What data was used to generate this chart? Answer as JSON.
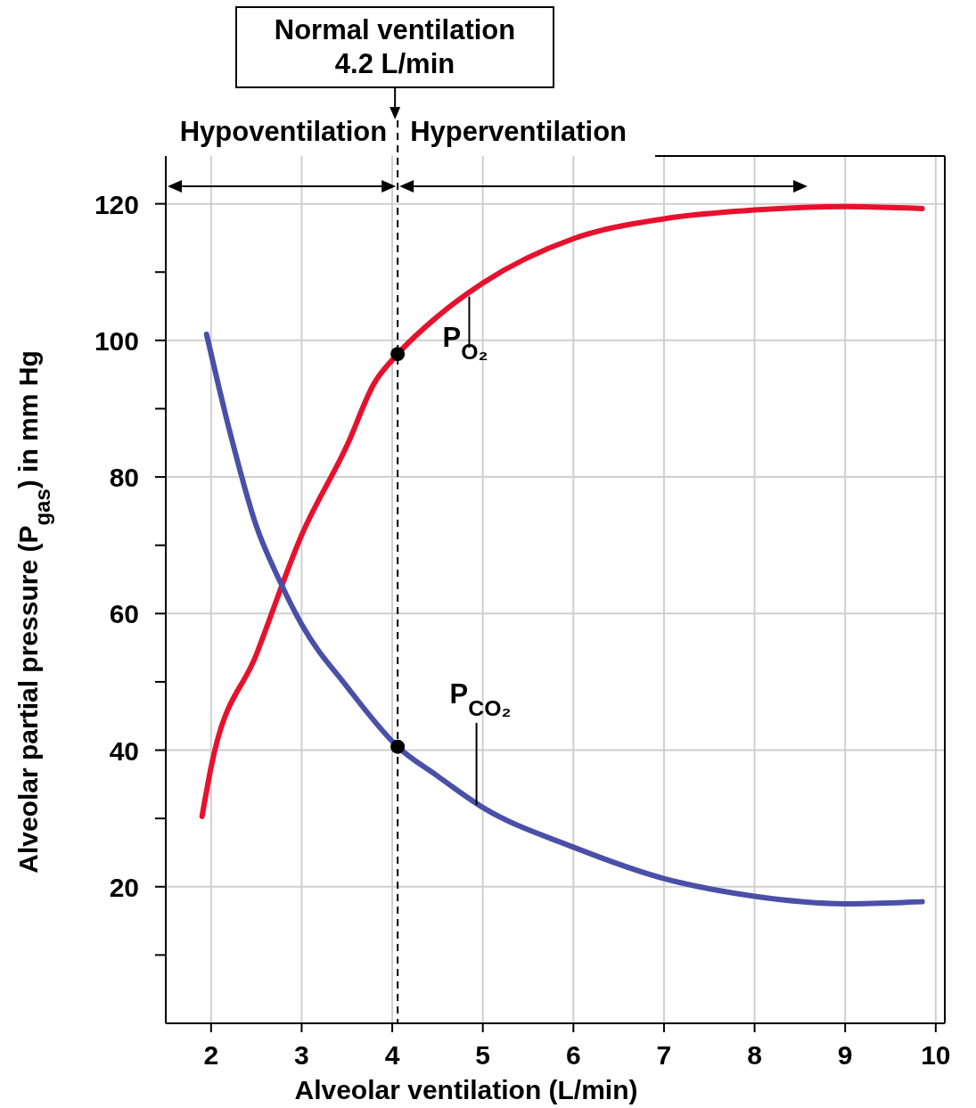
{
  "chart_data": {
    "type": "line",
    "xlabel": "Alveolar ventilation (L/min)",
    "ylabel": "Alveolar partial pressure (P$_{gas}$) in mm Hg",
    "xlim": [
      1.5,
      10.1
    ],
    "ylim": [
      0,
      127
    ],
    "xticks": [
      2,
      3,
      4,
      5,
      6,
      7,
      8,
      9,
      10
    ],
    "yticks": [
      {
        "value": 10,
        "label": null
      },
      20,
      {
        "value": 30,
        "label": null
      },
      40,
      {
        "value": 50,
        "label": null
      },
      60,
      {
        "value": 70,
        "label": null
      },
      80,
      {
        "value": 90,
        "label": null
      },
      100,
      {
        "value": 110,
        "label": null
      },
      120
    ],
    "grid": true,
    "line_style": "solid",
    "marker": "none",
    "series": [
      {
        "name": "P$_{O₂}$",
        "color": "#e8112d",
        "x": [
          1.9,
          2,
          2.5,
          3,
          3.5,
          3.8,
          4.06,
          4.5,
          5,
          6,
          7,
          8,
          9,
          9.85
        ],
        "values": [
          30.3,
          37.5,
          54,
          71.5,
          84.6,
          93.7,
          98,
          103.5,
          108.4,
          114.9,
          117.8,
          119.1,
          119.6,
          119.3
        ]
      },
      {
        "name": "P$_{CO₂}$",
        "color": "#4a4fa8",
        "x": [
          1.95,
          2.2,
          2.5,
          2.75,
          3,
          3.5,
          4.06,
          4.5,
          5,
          6,
          7,
          8,
          9,
          9.85
        ],
        "values": [
          100.9,
          87,
          72.8,
          65,
          58.4,
          49.3,
          40.5,
          36.2,
          31.6,
          25.8,
          21.2,
          18.6,
          17.5,
          17.8
        ]
      },
      {
        "type": "scatter",
        "color": "#000000",
        "marker": "circle",
        "x": [
          4.06,
          4.06
        ],
        "values": [
          98,
          40.5
        ]
      }
    ],
    "ref_lines": [
      {
        "axis": "x",
        "value": 4.06,
        "label": "Normal ventilation\n4.2 L/min",
        "line_style": "dashed",
        "color": "#000000"
      }
    ],
    "annotations": [
      "Hypoventilation",
      "Hyperventilation"
    ]
  }
}
